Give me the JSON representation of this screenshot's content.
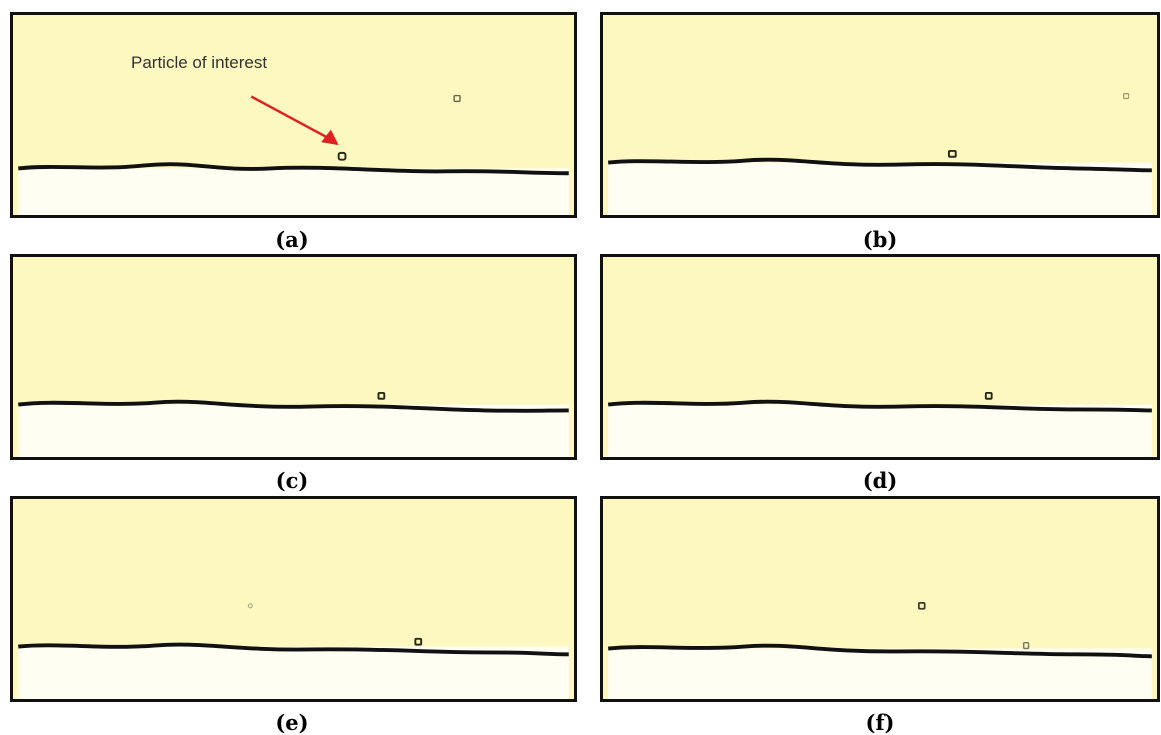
{
  "figure": {
    "panels": [
      {
        "label": "(a)",
        "annotation": "Particle of interest"
      },
      {
        "label": "(b)"
      },
      {
        "label": "(c)"
      },
      {
        "label": "(d)"
      },
      {
        "label": "(e)"
      },
      {
        "label": "(f)"
      }
    ],
    "colors": {
      "fluid": "#fdf8c0",
      "substrate": "#fefef2",
      "interface_line": "#111111",
      "arrow": "#e02020",
      "particle": "#2a2a1a"
    }
  }
}
